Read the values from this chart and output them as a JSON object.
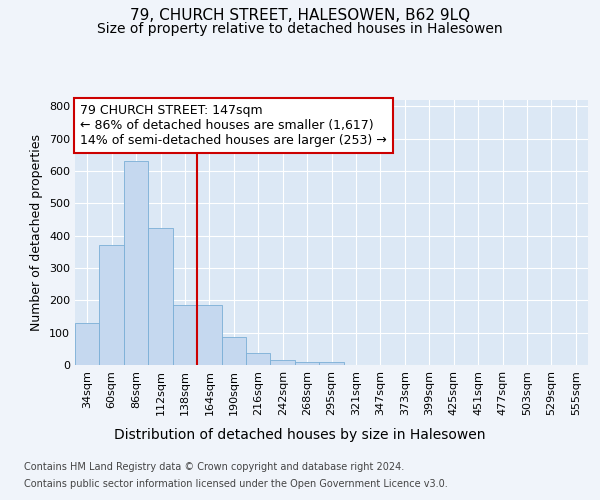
{
  "title": "79, CHURCH STREET, HALESOWEN, B62 9LQ",
  "subtitle": "Size of property relative to detached houses in Halesowen",
  "xlabel": "Distribution of detached houses by size in Halesowen",
  "ylabel": "Number of detached properties",
  "categories": [
    "34sqm",
    "60sqm",
    "86sqm",
    "112sqm",
    "138sqm",
    "164sqm",
    "190sqm",
    "216sqm",
    "242sqm",
    "268sqm",
    "295sqm",
    "321sqm",
    "347sqm",
    "373sqm",
    "399sqm",
    "425sqm",
    "451sqm",
    "477sqm",
    "503sqm",
    "529sqm",
    "555sqm"
  ],
  "values": [
    130,
    370,
    630,
    425,
    185,
    185,
    88,
    36,
    17,
    8,
    8,
    0,
    0,
    0,
    0,
    0,
    0,
    0,
    0,
    0,
    0
  ],
  "bar_color": "#c5d8ef",
  "bar_edge_color": "#7aaed6",
  "background_color": "#f0f4fa",
  "plot_bg_color": "#dce8f5",
  "grid_color": "#ffffff",
  "vline_color": "#cc0000",
  "vline_x": 4.5,
  "annotation_text_line1": "79 CHURCH STREET: 147sqm",
  "annotation_text_line2": "← 86% of detached houses are smaller (1,617)",
  "annotation_text_line3": "14% of semi-detached houses are larger (253) →",
  "annotation_box_facecolor": "#ffffff",
  "annotation_box_edgecolor": "#cc0000",
  "ylim": [
    0,
    820
  ],
  "yticks": [
    0,
    100,
    200,
    300,
    400,
    500,
    600,
    700,
    800
  ],
  "title_fontsize": 11,
  "subtitle_fontsize": 10,
  "xlabel_fontsize": 10,
  "ylabel_fontsize": 9,
  "tick_fontsize": 8,
  "ann_fontsize": 9,
  "footer_fontsize": 7,
  "footer_line1": "Contains HM Land Registry data © Crown copyright and database right 2024.",
  "footer_line2": "Contains public sector information licensed under the Open Government Licence v3.0."
}
